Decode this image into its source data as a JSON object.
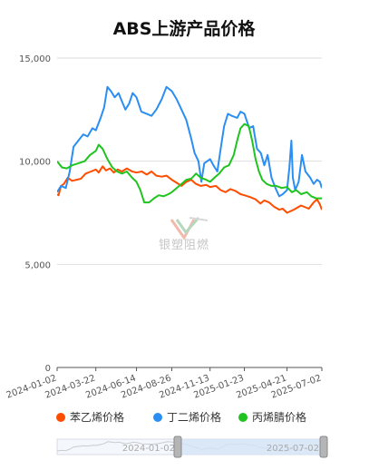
{
  "chart_data": {
    "type": "line",
    "title": "ABS上游产品价格",
    "y_ticks": [
      "0",
      "5,000",
      "10,000",
      "15,000"
    ],
    "ylim": [
      0,
      15000
    ],
    "x_tick_labels": [
      "2024-01-02",
      "2024-03-22",
      "2024-06-14",
      "2024-08-26",
      "2024-11-13",
      "2025-01-23",
      "2025-04-21",
      "2025-07-02"
    ],
    "x_range": [
      "2024-01-02",
      "2025-07-02"
    ],
    "grid": true,
    "legend_position": "bottom",
    "watermark_text": "银塑阻燃",
    "slider": {
      "start_label": "2024-01-02",
      "end_label": "2025-07-02"
    },
    "series": [
      {
        "name": "苯乙烯价格",
        "color": "#ff4d00",
        "points": [
          [
            "2024-01-02",
            8400
          ],
          [
            "2024-01-05",
            8350
          ],
          [
            "2024-01-10",
            8800
          ],
          [
            "2024-01-16",
            8900
          ],
          [
            "2024-01-24",
            9200
          ],
          [
            "2024-02-02",
            9050
          ],
          [
            "2024-02-20",
            9150
          ],
          [
            "2024-03-01",
            9400
          ],
          [
            "2024-03-12",
            9500
          ],
          [
            "2024-03-22",
            9600
          ],
          [
            "2024-03-28",
            9450
          ],
          [
            "2024-04-05",
            9750
          ],
          [
            "2024-04-12",
            9550
          ],
          [
            "2024-04-20",
            9650
          ],
          [
            "2024-04-28",
            9450
          ],
          [
            "2024-05-06",
            9600
          ],
          [
            "2024-05-15",
            9500
          ],
          [
            "2024-05-25",
            9650
          ],
          [
            "2024-06-05",
            9500
          ],
          [
            "2024-06-14",
            9450
          ],
          [
            "2024-06-25",
            9500
          ],
          [
            "2024-07-05",
            9350
          ],
          [
            "2024-07-15",
            9500
          ],
          [
            "2024-07-25",
            9300
          ],
          [
            "2024-08-05",
            9250
          ],
          [
            "2024-08-15",
            9300
          ],
          [
            "2024-08-26",
            9100
          ],
          [
            "2024-09-05",
            8950
          ],
          [
            "2024-09-15",
            8800
          ],
          [
            "2024-09-25",
            9000
          ],
          [
            "2024-10-05",
            9100
          ],
          [
            "2024-10-15",
            8900
          ],
          [
            "2024-10-25",
            8800
          ],
          [
            "2024-11-05",
            8850
          ],
          [
            "2024-11-13",
            8750
          ],
          [
            "2024-11-25",
            8800
          ],
          [
            "2024-12-05",
            8600
          ],
          [
            "2024-12-15",
            8500
          ],
          [
            "2024-12-25",
            8650
          ],
          [
            "2025-01-05",
            8550
          ],
          [
            "2025-01-15",
            8400
          ],
          [
            "2025-01-23",
            8350
          ],
          [
            "2025-02-05",
            8250
          ],
          [
            "2025-02-15",
            8150
          ],
          [
            "2025-02-25",
            7950
          ],
          [
            "2025-03-05",
            8100
          ],
          [
            "2025-03-15",
            8000
          ],
          [
            "2025-03-25",
            7800
          ],
          [
            "2025-04-05",
            7650
          ],
          [
            "2025-04-12",
            7700
          ],
          [
            "2025-04-21",
            7500
          ],
          [
            "2025-05-05",
            7650
          ],
          [
            "2025-05-20",
            7850
          ],
          [
            "2025-06-05",
            7700
          ],
          [
            "2025-06-15",
            8000
          ],
          [
            "2025-06-22",
            8150
          ],
          [
            "2025-06-28",
            7900
          ],
          [
            "2025-07-02",
            7650
          ]
        ]
      },
      {
        "name": "丁二烯价格",
        "color": "#2a8ef2",
        "points": [
          [
            "2024-01-02",
            8500
          ],
          [
            "2024-01-10",
            8800
          ],
          [
            "2024-01-20",
            8700
          ],
          [
            "2024-01-28",
            9500
          ],
          [
            "2024-02-05",
            10700
          ],
          [
            "2024-02-15",
            11000
          ],
          [
            "2024-02-25",
            11300
          ],
          [
            "2024-03-05",
            11200
          ],
          [
            "2024-03-15",
            11600
          ],
          [
            "2024-03-22",
            11500
          ],
          [
            "2024-04-01",
            12100
          ],
          [
            "2024-04-08",
            12600
          ],
          [
            "2024-04-15",
            13600
          ],
          [
            "2024-04-22",
            13400
          ],
          [
            "2024-04-30",
            13100
          ],
          [
            "2024-05-08",
            13300
          ],
          [
            "2024-05-15",
            12900
          ],
          [
            "2024-05-22",
            12500
          ],
          [
            "2024-05-30",
            12800
          ],
          [
            "2024-06-06",
            13300
          ],
          [
            "2024-06-14",
            13100
          ],
          [
            "2024-06-24",
            12400
          ],
          [
            "2024-07-05",
            12300
          ],
          [
            "2024-07-15",
            12200
          ],
          [
            "2024-07-25",
            12500
          ],
          [
            "2024-08-05",
            13000
          ],
          [
            "2024-08-15",
            13600
          ],
          [
            "2024-08-26",
            13400
          ],
          [
            "2024-09-05",
            13000
          ],
          [
            "2024-09-15",
            12500
          ],
          [
            "2024-09-25",
            12000
          ],
          [
            "2024-10-05",
            11100
          ],
          [
            "2024-10-12",
            10400
          ],
          [
            "2024-10-20",
            10000
          ],
          [
            "2024-10-26",
            9000
          ],
          [
            "2024-11-01",
            9900
          ],
          [
            "2024-11-07",
            10000
          ],
          [
            "2024-11-13",
            10100
          ],
          [
            "2024-11-20",
            9800
          ],
          [
            "2024-11-28",
            9500
          ],
          [
            "2024-12-05",
            10600
          ],
          [
            "2024-12-12",
            11700
          ],
          [
            "2024-12-20",
            12300
          ],
          [
            "2024-12-28",
            12200
          ],
          [
            "2025-01-08",
            12100
          ],
          [
            "2025-01-15",
            12400
          ],
          [
            "2025-01-23",
            12300
          ],
          [
            "2025-02-02",
            11600
          ],
          [
            "2025-02-10",
            11700
          ],
          [
            "2025-02-18",
            10600
          ],
          [
            "2025-02-26",
            10400
          ],
          [
            "2025-03-05",
            9800
          ],
          [
            "2025-03-12",
            10300
          ],
          [
            "2025-03-20",
            9200
          ],
          [
            "2025-03-28",
            8700
          ],
          [
            "2025-04-05",
            8300
          ],
          [
            "2025-04-12",
            8400
          ],
          [
            "2025-04-21",
            8600
          ],
          [
            "2025-04-26",
            9700
          ],
          [
            "2025-04-30",
            11000
          ],
          [
            "2025-05-03",
            9200
          ],
          [
            "2025-05-08",
            8600
          ],
          [
            "2025-05-15",
            9000
          ],
          [
            "2025-05-22",
            10300
          ],
          [
            "2025-05-29",
            9500
          ],
          [
            "2025-06-08",
            9200
          ],
          [
            "2025-06-15",
            8900
          ],
          [
            "2025-06-22",
            9100
          ],
          [
            "2025-06-28",
            9000
          ],
          [
            "2025-07-02",
            8700
          ]
        ]
      },
      {
        "name": "丙烯腈价格",
        "color": "#1fc41f",
        "points": [
          [
            "2024-01-02",
            10000
          ],
          [
            "2024-01-12",
            9700
          ],
          [
            "2024-01-22",
            9650
          ],
          [
            "2024-02-02",
            9800
          ],
          [
            "2024-02-15",
            9900
          ],
          [
            "2024-02-28",
            10000
          ],
          [
            "2024-03-10",
            10300
          ],
          [
            "2024-03-22",
            10500
          ],
          [
            "2024-03-28",
            10800
          ],
          [
            "2024-04-05",
            10600
          ],
          [
            "2024-04-15",
            10100
          ],
          [
            "2024-04-25",
            9700
          ],
          [
            "2024-05-05",
            9500
          ],
          [
            "2024-05-15",
            9400
          ],
          [
            "2024-05-25",
            9500
          ],
          [
            "2024-06-05",
            9200
          ],
          [
            "2024-06-14",
            9000
          ],
          [
            "2024-06-22",
            8600
          ],
          [
            "2024-06-30",
            8000
          ],
          [
            "2024-07-10",
            8000
          ],
          [
            "2024-07-20",
            8200
          ],
          [
            "2024-07-30",
            8350
          ],
          [
            "2024-08-09",
            8300
          ],
          [
            "2024-08-19",
            8400
          ],
          [
            "2024-08-26",
            8500
          ],
          [
            "2024-09-05",
            8700
          ],
          [
            "2024-09-15",
            8900
          ],
          [
            "2024-09-25",
            9100
          ],
          [
            "2024-10-05",
            9150
          ],
          [
            "2024-10-15",
            9400
          ],
          [
            "2024-10-25",
            9200
          ],
          [
            "2024-11-05",
            9100
          ],
          [
            "2024-11-13",
            9000
          ],
          [
            "2024-11-22",
            9200
          ],
          [
            "2024-12-02",
            9400
          ],
          [
            "2024-12-12",
            9700
          ],
          [
            "2024-12-22",
            9800
          ],
          [
            "2025-01-01",
            10300
          ],
          [
            "2025-01-08",
            11000
          ],
          [
            "2025-01-15",
            11600
          ],
          [
            "2025-01-23",
            11800
          ],
          [
            "2025-02-01",
            11700
          ],
          [
            "2025-02-08",
            11000
          ],
          [
            "2025-02-15",
            10100
          ],
          [
            "2025-02-22",
            9500
          ],
          [
            "2025-03-01",
            9100
          ],
          [
            "2025-03-10",
            8900
          ],
          [
            "2025-03-20",
            8800
          ],
          [
            "2025-03-30",
            8800
          ],
          [
            "2025-04-10",
            8700
          ],
          [
            "2025-04-21",
            8750
          ],
          [
            "2025-05-01",
            8500
          ],
          [
            "2025-05-10",
            8600
          ],
          [
            "2025-05-20",
            8400
          ],
          [
            "2025-06-01",
            8500
          ],
          [
            "2025-06-10",
            8300
          ],
          [
            "2025-06-20",
            8200
          ],
          [
            "2025-07-02",
            8200
          ]
        ]
      }
    ]
  }
}
